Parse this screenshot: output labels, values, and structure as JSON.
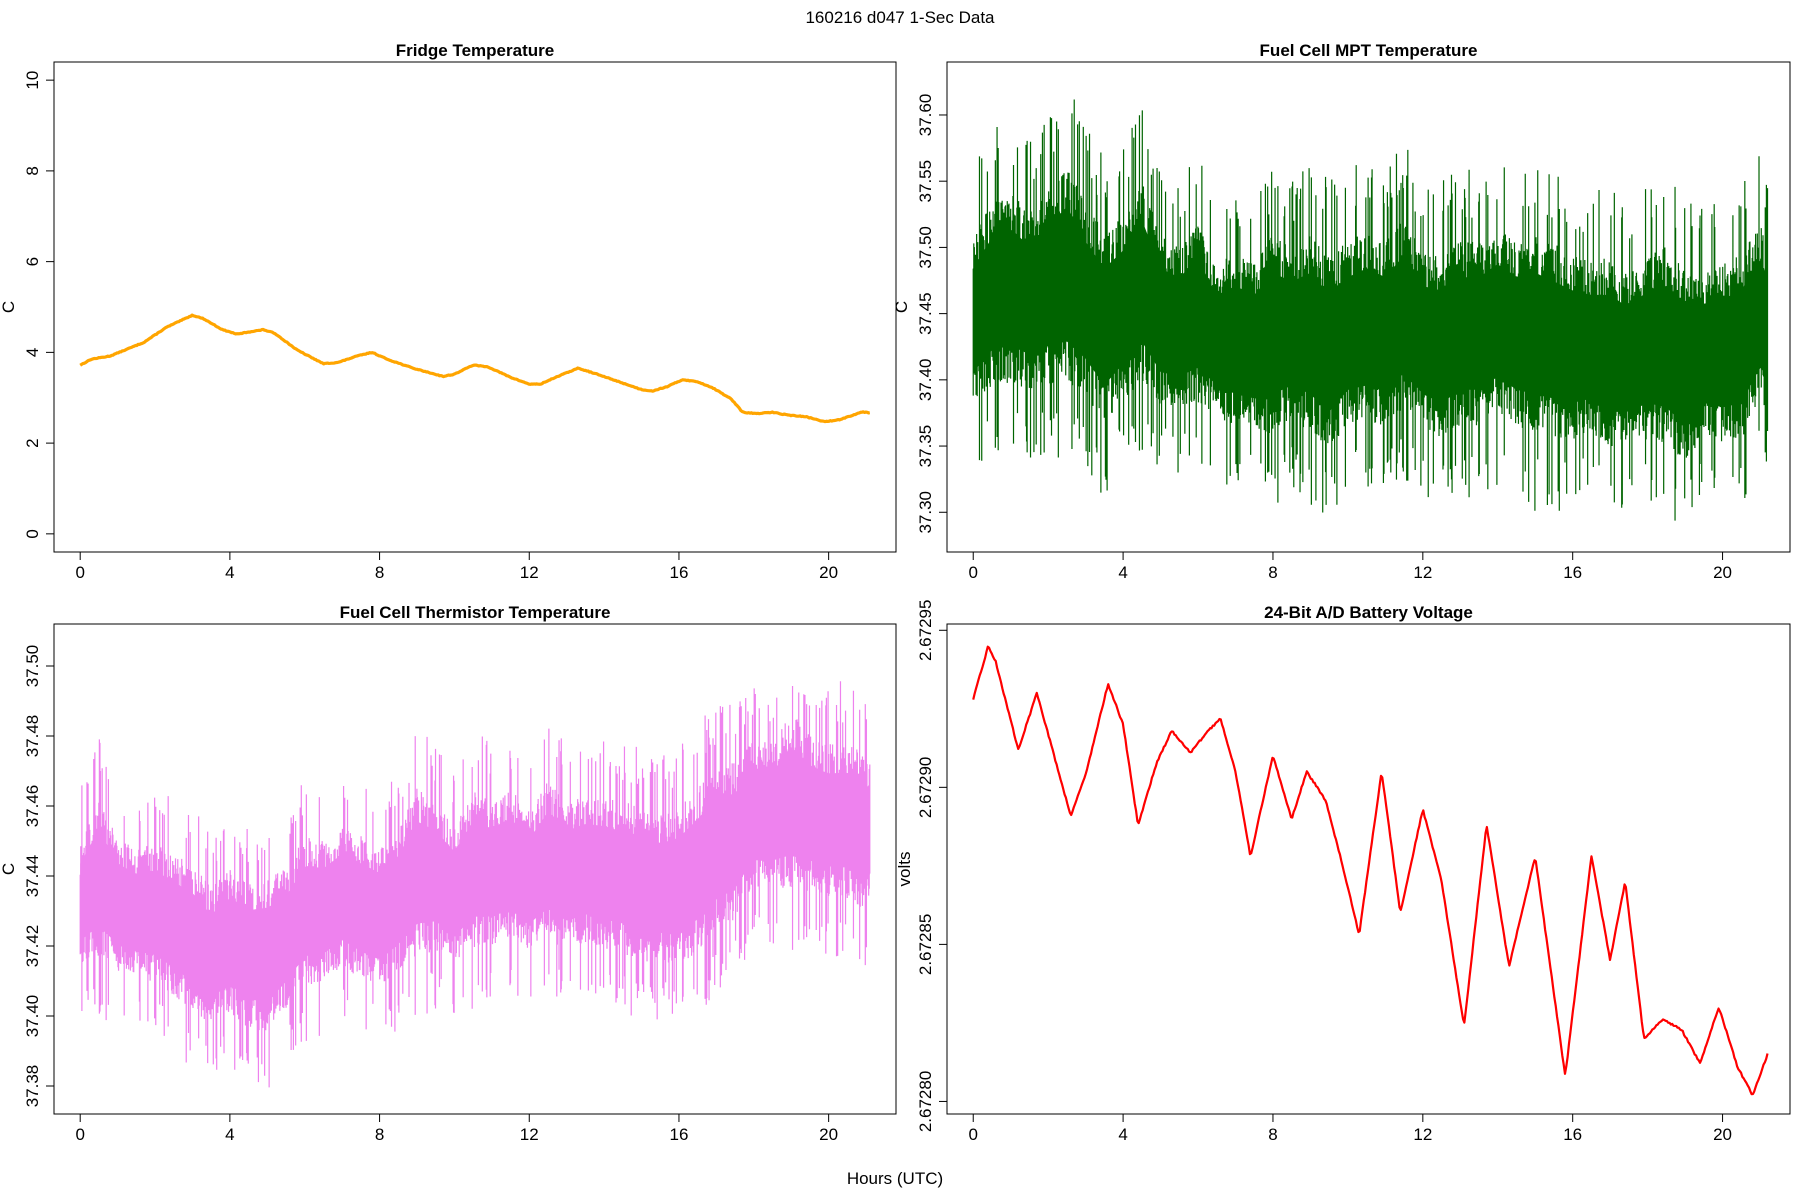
{
  "figure": {
    "title": "160216   d047   1-Sec Data",
    "xlabel": "Hours (UTC)"
  },
  "chart_data": [
    {
      "type": "line",
      "title": "Fridge Temperature",
      "xlabel": "",
      "ylabel": "C",
      "color": "#FFA500",
      "xlim": [
        -0.7,
        21.8
      ],
      "ylim": [
        -0.4,
        10.4
      ],
      "xticks": [
        0,
        4,
        8,
        12,
        16,
        20
      ],
      "yticks": [
        0,
        2,
        4,
        6,
        8,
        10
      ],
      "ytick_labels": [
        "0",
        "2",
        "4",
        "6",
        "8",
        "10"
      ],
      "series": [
        {
          "x": [
            0,
            0.3,
            0.8,
            1.7,
            2.3,
            3.0,
            3.3,
            3.8,
            4.2,
            4.5,
            4.9,
            5.2,
            5.8,
            6.5,
            6.9,
            7.4,
            7.8,
            8.2,
            8.9,
            9.7,
            10.0,
            10.5,
            10.9,
            11.5,
            12.0,
            12.3,
            12.7,
            13.3,
            13.7,
            14.3,
            15.0,
            15.3,
            15.7,
            16.1,
            16.5,
            16.9,
            17.4,
            17.7,
            18.1,
            18.5,
            18.9,
            19.4,
            19.9,
            20.3,
            20.9,
            21.1
          ],
          "y": [
            3.72,
            3.85,
            3.92,
            4.22,
            4.55,
            4.82,
            4.74,
            4.5,
            4.4,
            4.45,
            4.5,
            4.42,
            4.05,
            3.75,
            3.78,
            3.92,
            4.0,
            3.85,
            3.65,
            3.47,
            3.52,
            3.72,
            3.68,
            3.45,
            3.3,
            3.3,
            3.45,
            3.65,
            3.55,
            3.38,
            3.18,
            3.15,
            3.25,
            3.4,
            3.35,
            3.22,
            2.97,
            2.68,
            2.65,
            2.68,
            2.62,
            2.58,
            2.47,
            2.52,
            2.69,
            2.67
          ]
        }
      ]
    },
    {
      "type": "line",
      "title": "Fuel Cell MPT Temperature",
      "xlabel": "",
      "ylabel": "C",
      "color": "#006400",
      "xlim": [
        -0.7,
        21.8
      ],
      "ylim": [
        37.27,
        37.64
      ],
      "xticks": [
        0,
        4,
        8,
        12,
        16,
        20
      ],
      "yticks": [
        37.3,
        37.35,
        37.4,
        37.45,
        37.5,
        37.55,
        37.6
      ],
      "ytick_labels": [
        "37.30",
        "37.35",
        "37.40",
        "37.45",
        "37.50",
        "37.55",
        "37.60"
      ],
      "series": [
        {
          "x": [
            0,
            0.5,
            1,
            1.5,
            2,
            2.5,
            3,
            3.5,
            4,
            4.5,
            5,
            5.5,
            6,
            6.5,
            7,
            7.5,
            8,
            8.5,
            9,
            9.5,
            10,
            10.5,
            11,
            11.5,
            12,
            12.5,
            13,
            13.5,
            14,
            14.5,
            15,
            15.5,
            16,
            16.5,
            17,
            17.5,
            18,
            18.5,
            19,
            19.5,
            20,
            20.5,
            21,
            21.2
          ],
          "low": [
            37.33,
            37.34,
            37.34,
            37.34,
            37.34,
            37.33,
            37.33,
            37.31,
            37.33,
            37.34,
            37.33,
            37.33,
            37.33,
            37.33,
            37.31,
            37.31,
            37.3,
            37.32,
            37.3,
            37.29,
            37.31,
            37.31,
            37.31,
            37.32,
            37.31,
            37.3,
            37.31,
            37.31,
            37.32,
            37.31,
            37.3,
            37.3,
            37.3,
            37.31,
            37.29,
            37.3,
            37.3,
            37.29,
            37.28,
            37.31,
            37.3,
            37.3,
            37.33,
            37.33
          ],
          "high": [
            37.56,
            37.59,
            37.6,
            37.58,
            37.6,
            37.63,
            37.59,
            37.57,
            37.58,
            37.61,
            37.56,
            37.55,
            37.57,
            37.53,
            37.55,
            37.54,
            37.57,
            37.55,
            37.57,
            37.55,
            37.56,
            37.57,
            37.56,
            37.58,
            37.55,
            37.55,
            37.56,
            37.56,
            37.57,
            37.56,
            37.57,
            37.56,
            37.55,
            37.54,
            37.55,
            37.53,
            37.55,
            37.56,
            37.54,
            37.53,
            37.54,
            37.55,
            37.57,
            37.55
          ]
        }
      ]
    },
    {
      "type": "line",
      "title": "Fuel Cell Thermistor Temperature",
      "xlabel": "",
      "ylabel": "C",
      "color": "#EE82EE",
      "xlim": [
        -0.7,
        21.8
      ],
      "ylim": [
        37.372,
        37.512
      ],
      "xticks": [
        0,
        4,
        8,
        12,
        16,
        20
      ],
      "yticks": [
        37.38,
        37.4,
        37.42,
        37.44,
        37.46,
        37.48,
        37.5
      ],
      "ytick_labels": [
        "37.38",
        "37.40",
        "37.42",
        "37.44",
        "37.46",
        "37.48",
        "37.50"
      ],
      "series": [
        {
          "x": [
            0,
            0.5,
            1,
            1.5,
            2,
            2.5,
            3,
            3.5,
            4,
            4.5,
            5,
            5.5,
            6,
            6.5,
            7,
            7.5,
            8,
            8.5,
            9,
            9.5,
            10,
            10.5,
            11,
            11.5,
            12,
            12.5,
            13,
            13.5,
            14,
            14.5,
            15,
            15.5,
            16,
            16.5,
            17,
            17.5,
            18,
            18.5,
            19,
            19.5,
            20,
            20.5,
            21,
            21.1
          ],
          "low": [
            37.4,
            37.399,
            37.398,
            37.397,
            37.394,
            37.39,
            37.385,
            37.382,
            37.385,
            37.38,
            37.378,
            37.386,
            37.392,
            37.394,
            37.398,
            37.394,
            37.392,
            37.396,
            37.398,
            37.402,
            37.4,
            37.402,
            37.404,
            37.405,
            37.403,
            37.404,
            37.402,
            37.404,
            37.402,
            37.401,
            37.398,
            37.399,
            37.396,
            37.4,
            37.406,
            37.41,
            37.42,
            37.42,
            37.416,
            37.418,
            37.417,
            37.416,
            37.412,
            37.416
          ],
          "high": [
            37.465,
            37.48,
            37.466,
            37.462,
            37.465,
            37.462,
            37.46,
            37.452,
            37.458,
            37.455,
            37.457,
            37.458,
            37.468,
            37.466,
            37.47,
            37.468,
            37.465,
            37.47,
            37.484,
            37.478,
            37.47,
            37.482,
            37.478,
            37.482,
            37.474,
            37.485,
            37.478,
            37.48,
            37.48,
            37.478,
            37.478,
            37.474,
            37.478,
            37.484,
            37.49,
            37.49,
            37.496,
            37.494,
            37.507,
            37.498,
            37.495,
            37.496,
            37.492,
            37.49
          ]
        }
      ]
    },
    {
      "type": "line",
      "title": "24-Bit A/D Battery Voltage",
      "xlabel": "",
      "ylabel": "volts",
      "color": "#FF0000",
      "xlim": [
        -0.7,
        21.8
      ],
      "ylim": [
        2.672796,
        2.672952
      ],
      "xticks": [
        0,
        4,
        8,
        12,
        16,
        20
      ],
      "yticks": [
        2.6728,
        2.67285,
        2.6729,
        2.67295
      ],
      "ytick_labels": [
        "2.67280",
        "2.67285",
        "2.67290",
        "2.67295"
      ],
      "series": [
        {
          "x": [
            0,
            0.4,
            0.6,
            1.2,
            1.7,
            2.0,
            2.6,
            3.0,
            3.6,
            4.0,
            4.4,
            4.9,
            5.3,
            5.8,
            6.2,
            6.6,
            7.0,
            7.4,
            8.0,
            8.5,
            8.9,
            9.4,
            9.8,
            10.3,
            10.9,
            11.4,
            12.0,
            12.5,
            13.1,
            13.7,
            14.3,
            15.0,
            15.8,
            16.5,
            17.0,
            17.4,
            17.9,
            18.4,
            18.9,
            19.4,
            19.9,
            20.4,
            20.8,
            21.2
          ],
          "y": [
            2.672928,
            2.672945,
            2.67294,
            2.672912,
            2.67293,
            2.672917,
            2.672891,
            2.672904,
            2.672933,
            2.67292,
            2.672888,
            2.672908,
            2.672918,
            2.672911,
            2.672917,
            2.672922,
            2.672905,
            2.672878,
            2.67291,
            2.67289,
            2.672905,
            2.672896,
            2.672878,
            2.672853,
            2.672905,
            2.67286,
            2.672893,
            2.67287,
            2.672824,
            2.672888,
            2.672843,
            2.672878,
            2.672808,
            2.672878,
            2.672845,
            2.67287,
            2.67282,
            2.672826,
            2.672823,
            2.672812,
            2.67283,
            2.672811,
            2.672802,
            2.672815
          ]
        }
      ]
    }
  ]
}
